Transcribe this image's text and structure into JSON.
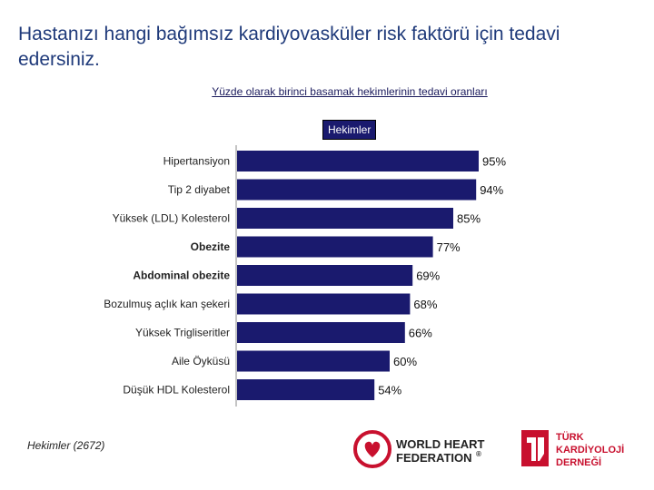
{
  "title": "Hastanızı hangi bağımsız kardiyovasküler risk faktörü için tedavi edersiniz.",
  "subtitle": "Yüzde olarak birinci basamak hekimlerinin tedavi oranları",
  "footnote": "Hekimler (2672)",
  "logos": {
    "whf_line1": "WORLD HEART",
    "whf_line2": "FEDERATION",
    "whf_mark": "®",
    "tkd_line1": "TÜRK",
    "tkd_line2": "KARDİYOLOJİ",
    "tkd_line3": "DERNEĞİ"
  },
  "colors": {
    "bar": "#1a1a6e",
    "title": "#1f3a7a",
    "logo_red": "#c8102e"
  },
  "chart_data": {
    "type": "bar",
    "orientation": "horizontal",
    "categories": [
      "Hipertansiyon",
      "Tip 2 diyabet",
      "Yüksek (LDL) Kolesterol",
      "Obezite",
      "Abdominal obezite",
      "Bozulmuş açlık kan şekeri",
      "Yüksek Trigliseritler",
      "Aile Öyküsü",
      "Düşük HDL Kolesterol"
    ],
    "bold_categories": [
      "Obezite",
      "Abdominal obezite"
    ],
    "series": [
      {
        "name": "Hekimler",
        "values": [
          95,
          94,
          85,
          77,
          69,
          68,
          66,
          60,
          54
        ]
      }
    ],
    "value_labels": [
      "95%",
      "94%",
      "85%",
      "77%",
      "69%",
      "68%",
      "66%",
      "60%",
      "54%"
    ],
    "xlim": [
      0,
      100
    ],
    "legend": "top",
    "grid": false
  }
}
